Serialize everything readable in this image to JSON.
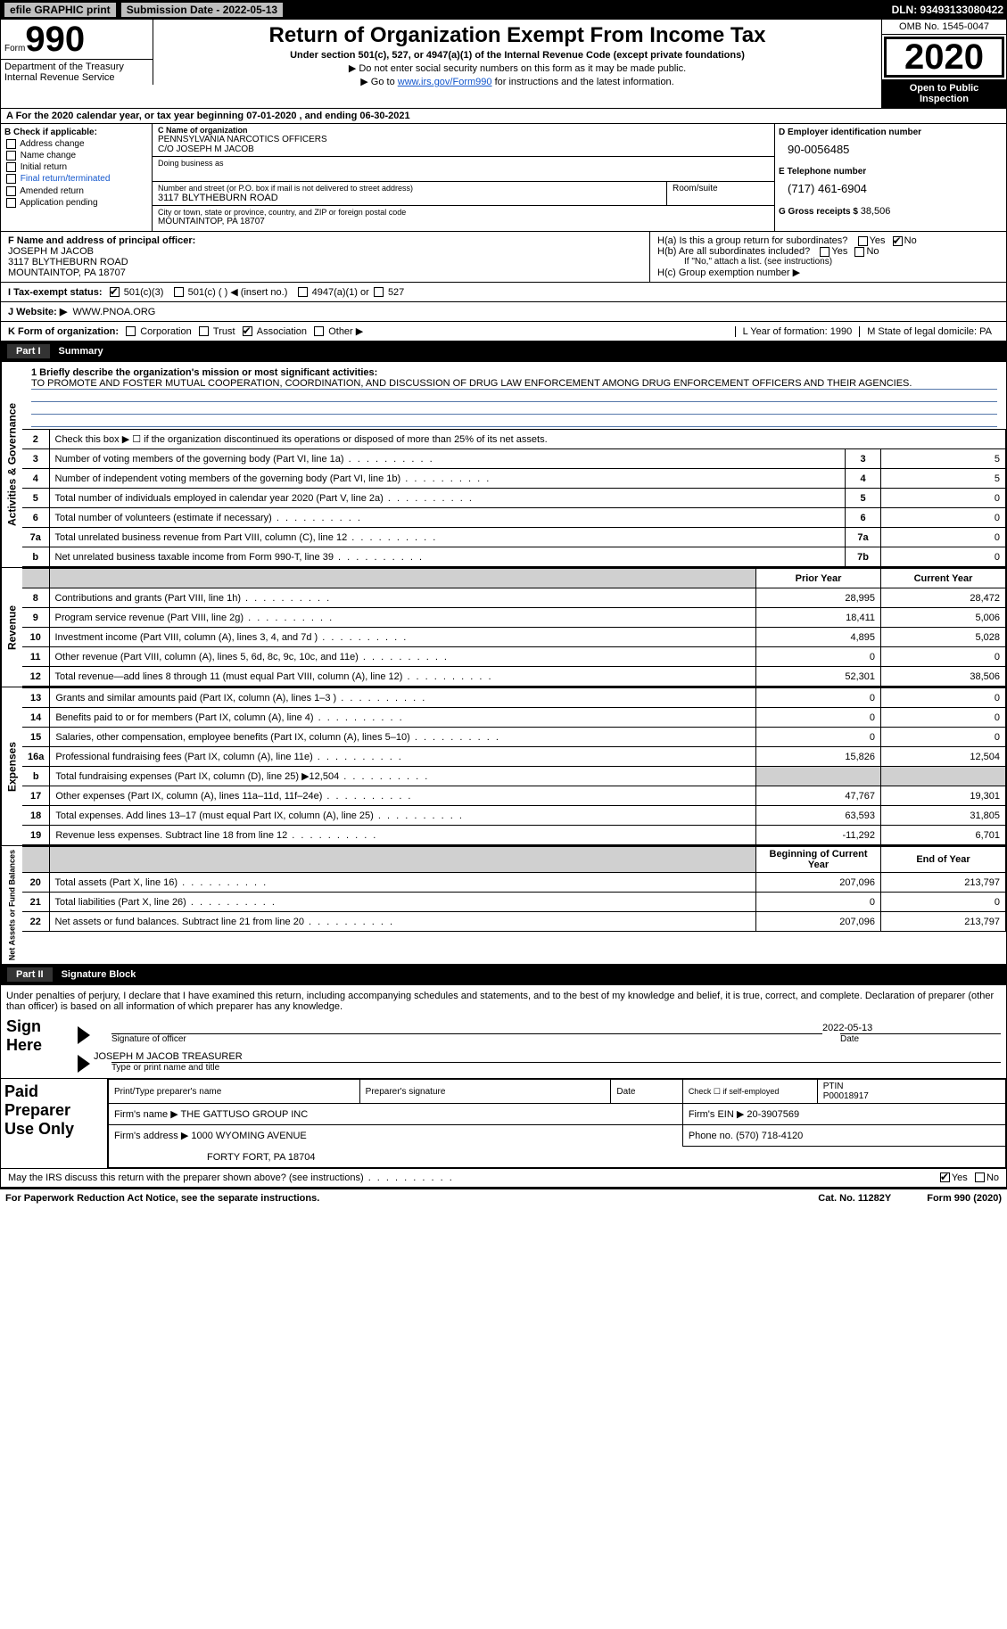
{
  "topbar": {
    "efile": "efile GRAPHIC print",
    "sub_label": "Submission Date - 2022-05-13",
    "dln": "DLN: 93493133080422"
  },
  "header": {
    "form_word": "Form",
    "form_num": "990",
    "title": "Return of Organization Exempt From Income Tax",
    "sub1": "Under section 501(c), 527, or 4947(a)(1) of the Internal Revenue Code (except private foundations)",
    "sub2": "▶ Do not enter social security numbers on this form as it may be made public.",
    "sub3_pre": "▶ Go to ",
    "sub3_link": "www.irs.gov/Form990",
    "sub3_post": " for instructions and the latest information.",
    "dept": "Department of the Treasury\nInternal Revenue Service",
    "omb": "OMB No. 1545-0047",
    "year": "2020",
    "open": "Open to Public Inspection"
  },
  "period": "A For the 2020 calendar year, or tax year beginning 07-01-2020    , and ending 06-30-2021",
  "checkB": {
    "label": "B Check if applicable:",
    "items": [
      "Address change",
      "Name change",
      "Initial return",
      "Final return/terminated",
      "Amended return",
      "Application pending"
    ]
  },
  "nameC": {
    "lbl": "C Name of organization",
    "name": "PENNSYLVANIA NARCOTICS OFFICERS",
    "co": "C/O JOSEPH M JACOB",
    "dba_lbl": "Doing business as",
    "addr_lbl": "Number and street (or P.O. box if mail is not delivered to street address)",
    "addr": "3117 BLYTHEBURN ROAD",
    "room_lbl": "Room/suite",
    "city_lbl": "City or town, state or province, country, and ZIP or foreign postal code",
    "city": "MOUNTAINTOP, PA  18707"
  },
  "einD": {
    "lbl": "D Employer identification number",
    "val": "90-0056485",
    "tel_lbl": "E Telephone number",
    "tel": "(717) 461-6904",
    "gross_lbl": "G Gross receipts $ ",
    "gross": "38,506"
  },
  "officerF": {
    "lbl": "F Name and address of principal officer:",
    "name": "JOSEPH M JACOB",
    "addr1": "3117 BLYTHEBURN ROAD",
    "addr2": "MOUNTAINTOP, PA  18707"
  },
  "groupH": {
    "a": "H(a)  Is this a group return for subordinates?",
    "a_yes": "Yes",
    "a_no": "No",
    "b": "H(b)  Are all subordinates included?",
    "b_yes": "Yes",
    "b_no": "No",
    "b_note": "If \"No,\" attach a list. (see instructions)",
    "c": "H(c)  Group exemption number ▶"
  },
  "statusI": {
    "lbl": "I    Tax-exempt status:",
    "o1": "501(c)(3)",
    "o2": "501(c) (   ) ◀ (insert no.)",
    "o3": "4947(a)(1) or",
    "o4": "527"
  },
  "websiteJ": {
    "lbl": "J   Website: ▶",
    "val": "WWW.PNOA.ORG"
  },
  "korg": {
    "lbl": "K Form of organization:",
    "o1": "Corporation",
    "o2": "Trust",
    "o3": "Association",
    "o4": "Other ▶",
    "L": "L Year of formation: 1990",
    "M": "M State of legal domicile: PA"
  },
  "parts": {
    "p1": "Part I",
    "p1t": "Summary",
    "p2": "Part II",
    "p2t": "Signature Block"
  },
  "tabs": {
    "gov": "Activities & Governance",
    "rev": "Revenue",
    "exp": "Expenses",
    "net": "Net Assets or Fund Balances"
  },
  "mission": {
    "lbl": "1   Briefly describe the organization's mission or most significant activities:",
    "text": "TO PROMOTE AND FOSTER MUTUAL COOPERATION, COORDINATION, AND DISCUSSION OF DRUG LAW ENFORCEMENT AMONG DRUG ENFORCEMENT OFFICERS AND THEIR AGENCIES."
  },
  "gov_rows": [
    {
      "n": "2",
      "d": "Check this box ▶ ☐  if the organization discontinued its operations or disposed of more than 25% of its net assets.",
      "box": "",
      "v": ""
    },
    {
      "n": "3",
      "d": "Number of voting members of the governing body (Part VI, line 1a)",
      "box": "3",
      "v": "5"
    },
    {
      "n": "4",
      "d": "Number of independent voting members of the governing body (Part VI, line 1b)",
      "box": "4",
      "v": "5"
    },
    {
      "n": "5",
      "d": "Total number of individuals employed in calendar year 2020 (Part V, line 2a)",
      "box": "5",
      "v": "0"
    },
    {
      "n": "6",
      "d": "Total number of volunteers (estimate if necessary)",
      "box": "6",
      "v": "0"
    },
    {
      "n": "7a",
      "d": "Total unrelated business revenue from Part VIII, column (C), line 12",
      "box": "7a",
      "v": "0"
    },
    {
      "n": "b",
      "d": "Net unrelated business taxable income from Form 990-T, line 39",
      "box": "7b",
      "v": "0"
    }
  ],
  "col_hdrs": {
    "py": "Prior Year",
    "cy": "Current Year"
  },
  "rev_rows": [
    {
      "n": "8",
      "d": "Contributions and grants (Part VIII, line 1h)",
      "py": "28,995",
      "cy": "28,472"
    },
    {
      "n": "9",
      "d": "Program service revenue (Part VIII, line 2g)",
      "py": "18,411",
      "cy": "5,006"
    },
    {
      "n": "10",
      "d": "Investment income (Part VIII, column (A), lines 3, 4, and 7d )",
      "py": "4,895",
      "cy": "5,028"
    },
    {
      "n": "11",
      "d": "Other revenue (Part VIII, column (A), lines 5, 6d, 8c, 9c, 10c, and 11e)",
      "py": "0",
      "cy": "0"
    },
    {
      "n": "12",
      "d": "Total revenue—add lines 8 through 11 (must equal Part VIII, column (A), line 12)",
      "py": "52,301",
      "cy": "38,506"
    }
  ],
  "exp_rows": [
    {
      "n": "13",
      "d": "Grants and similar amounts paid (Part IX, column (A), lines 1–3 )",
      "py": "0",
      "cy": "0"
    },
    {
      "n": "14",
      "d": "Benefits paid to or for members (Part IX, column (A), line 4)",
      "py": "0",
      "cy": "0"
    },
    {
      "n": "15",
      "d": "Salaries, other compensation, employee benefits (Part IX, column (A), lines 5–10)",
      "py": "0",
      "cy": "0"
    },
    {
      "n": "16a",
      "d": "Professional fundraising fees (Part IX, column (A), line 11e)",
      "py": "15,826",
      "cy": "12,504"
    },
    {
      "n": "b",
      "d": "Total fundraising expenses (Part IX, column (D), line 25) ▶12,504",
      "py": "",
      "cy": "",
      "grey": true
    },
    {
      "n": "17",
      "d": "Other expenses (Part IX, column (A), lines 11a–11d, 11f–24e)",
      "py": "47,767",
      "cy": "19,301"
    },
    {
      "n": "18",
      "d": "Total expenses. Add lines 13–17 (must equal Part IX, column (A), line 25)",
      "py": "63,593",
      "cy": "31,805"
    },
    {
      "n": "19",
      "d": "Revenue less expenses. Subtract line 18 from line 12",
      "py": "-11,292",
      "cy": "6,701"
    }
  ],
  "net_hdrs": {
    "bcy": "Beginning of Current Year",
    "eoy": "End of Year"
  },
  "net_rows": [
    {
      "n": "20",
      "d": "Total assets (Part X, line 16)",
      "py": "207,096",
      "cy": "213,797"
    },
    {
      "n": "21",
      "d": "Total liabilities (Part X, line 26)",
      "py": "0",
      "cy": "0"
    },
    {
      "n": "22",
      "d": "Net assets or fund balances. Subtract line 21 from line 20",
      "py": "207,096",
      "cy": "213,797"
    }
  ],
  "sig": {
    "decl": "Under penalties of perjury, I declare that I have examined this return, including accompanying schedules and statements, and to the best of my knowledge and belief, it is true, correct, and complete. Declaration of preparer (other than officer) is based on all information of which preparer has any knowledge.",
    "sign_here": "Sign Here",
    "sig_of": "Signature of officer",
    "date_lbl": "Date",
    "date": "2022-05-13",
    "name": "JOSEPH M JACOB  TREASURER",
    "name_lbl": "Type or print name and title"
  },
  "prep": {
    "lbl": "Paid Preparer Use Only",
    "h1": "Print/Type preparer's name",
    "h2": "Preparer's signature",
    "h3": "Date",
    "h4_a": "Check ☐ if self-employed",
    "h4_b": "PTIN",
    "ptin": "P00018917",
    "firm_lbl": "Firm's name     ▶",
    "firm": "THE GATTUSO GROUP INC",
    "ein_lbl": "Firm's EIN ▶",
    "ein": "20-3907569",
    "addr_lbl": "Firm's address ▶",
    "addr1": "1000 WYOMING AVENUE",
    "addr2": "FORTY FORT, PA  18704",
    "phone_lbl": "Phone no.",
    "phone": "(570) 718-4120",
    "discuss": "May the IRS discuss this return with the preparer shown above? (see instructions)",
    "yes": "Yes",
    "no": "No"
  },
  "footer": {
    "pra": "For Paperwork Reduction Act Notice, see the separate instructions.",
    "cat": "Cat. No. 11282Y",
    "form": "Form 990 (2020)"
  }
}
